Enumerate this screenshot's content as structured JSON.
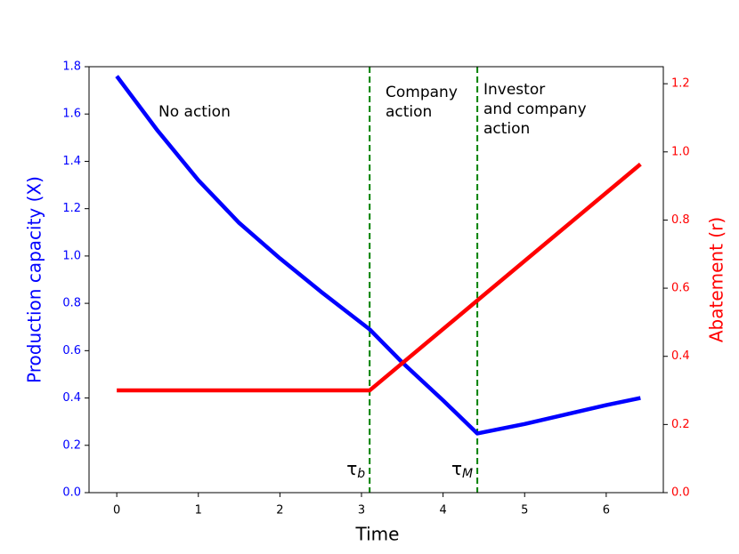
{
  "chart_data": {
    "type": "line",
    "xlabel": "Time",
    "ylabel": "Production capacity (X)",
    "y2label": "Abatement (r)",
    "xlim": [
      -0.34,
      6.7
    ],
    "ylim": [
      0,
      1.8
    ],
    "y2lim": [
      0,
      1.25
    ],
    "xticks": [
      0,
      1,
      2,
      3,
      4,
      5,
      6
    ],
    "yticks": [
      {
        "value": 0,
        "label": "0.0"
      },
      0.2,
      0.4,
      0.6,
      0.8,
      {
        "value": 1,
        "label": "1.0"
      },
      1.2,
      1.4,
      1.6,
      1.8
    ],
    "y2ticks": [
      {
        "value": 0,
        "label": "0.0"
      },
      0.2,
      0.4,
      0.6,
      0.8,
      {
        "value": 1,
        "label": "1.0"
      },
      1.2
    ],
    "ylabel_color": "#0000ff",
    "y2label_color": "#ff0000",
    "series": [
      {
        "name": "Production capacity (X)",
        "color": "#0000ff",
        "x": [
          0,
          0.5,
          1,
          1.5,
          2,
          2.5,
          3.1,
          3.5,
          4,
          4.42,
          5,
          5.5,
          6,
          6.42
        ],
        "values": [
          1.76,
          1.53,
          1.32,
          1.14,
          0.99,
          0.85,
          0.69,
          0.55,
          0.39,
          0.25,
          0.29,
          0.33,
          0.37,
          0.4
        ]
      },
      {
        "name": "Abatement (r)",
        "color": "#ff0000",
        "axis": "y2",
        "x": [
          0,
          3.1,
          4.42,
          6.42
        ],
        "values": [
          0.3,
          0.3,
          0.564,
          0.964
        ]
      }
    ],
    "vlines": [
      {
        "x": 3.1,
        "color": "#008000",
        "symbol": "τ",
        "sub": "b"
      },
      {
        "x": 4.42,
        "color": "#008000",
        "symbol": "τ",
        "sub": "M"
      }
    ],
    "annotations": [
      {
        "lines": [
          "No action"
        ]
      },
      {
        "lines": [
          "Company",
          "action"
        ]
      },
      {
        "lines": [
          "Investor",
          "and company",
          "action"
        ]
      }
    ]
  }
}
